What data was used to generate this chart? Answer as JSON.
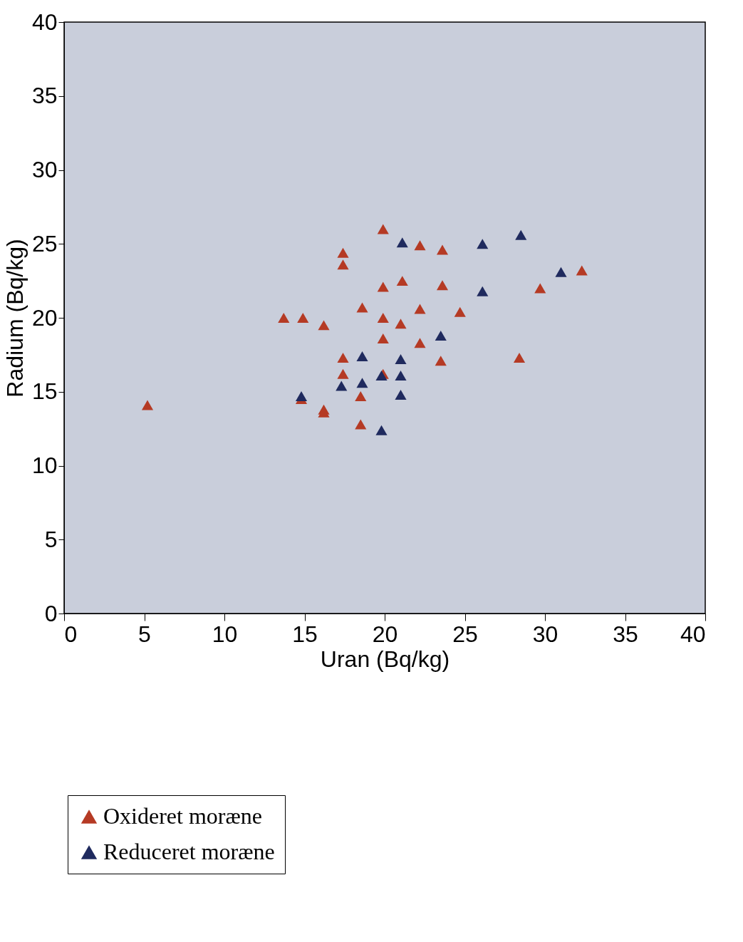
{
  "chart_data": {
    "type": "scatter",
    "xlabel": "Uran (Bq/kg)",
    "ylabel": "Radium (Bq/kg)",
    "xlim": [
      0,
      40
    ],
    "ylim": [
      0,
      40
    ],
    "xticks": [
      0,
      5,
      10,
      15,
      20,
      25,
      30,
      35,
      40
    ],
    "yticks": [
      0,
      5,
      10,
      15,
      20,
      25,
      30,
      35,
      40
    ],
    "grid": false,
    "legend": "bottom left",
    "marker": "triangle",
    "series": [
      {
        "name": "Oxideret moræne",
        "color": "#b53a24",
        "x": [
          5.2,
          13.7,
          14.9,
          16.2,
          17.4,
          17.4,
          17.4,
          17.4,
          14.8,
          16.2,
          16.2,
          18.5,
          18.5,
          18.6,
          19.9,
          19.9,
          19.9,
          19.9,
          19.9,
          21.1,
          21.0,
          22.2,
          22.2,
          22.2,
          23.6,
          23.6,
          23.5,
          24.7,
          28.4,
          29.7,
          32.3
        ],
        "values": [
          14.1,
          20.0,
          20.0,
          19.5,
          24.4,
          23.6,
          17.3,
          16.2,
          14.5,
          13.8,
          13.6,
          14.7,
          12.8,
          20.7,
          26.0,
          22.1,
          20.0,
          18.6,
          16.2,
          22.5,
          19.6,
          24.9,
          20.6,
          18.3,
          24.6,
          22.2,
          17.1,
          20.4,
          17.3,
          22.0,
          23.2
        ]
      },
      {
        "name": "Reduceret moræne",
        "color": "#1f2a5e",
        "x": [
          21.1,
          26.1,
          28.5,
          31.0,
          26.1,
          23.5,
          18.6,
          21.0,
          17.3,
          18.6,
          19.8,
          21.0,
          21.0,
          14.8,
          19.8
        ],
        "values": [
          25.1,
          25.0,
          25.6,
          23.1,
          21.8,
          18.8,
          17.4,
          17.2,
          15.4,
          15.6,
          16.1,
          16.1,
          14.8,
          14.7,
          12.4
        ]
      }
    ]
  }
}
